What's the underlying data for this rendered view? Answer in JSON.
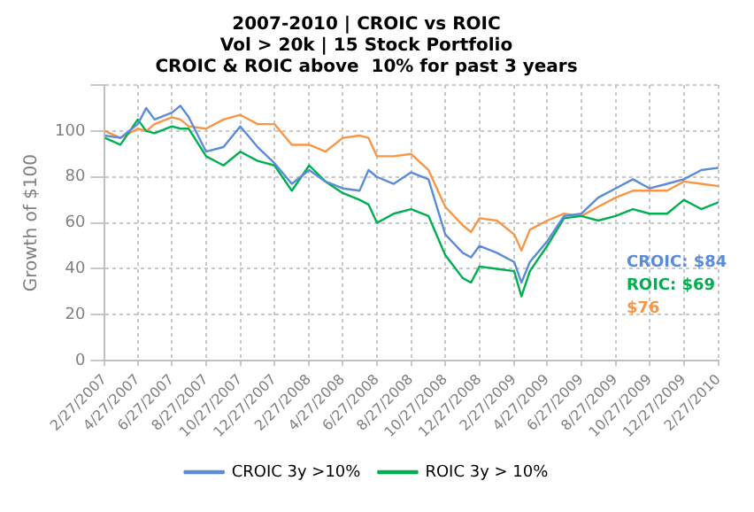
{
  "chart_data": {
    "type": "line",
    "title": "2007-2010 | CROIC vs ROIC",
    "subtitle": "Vol > 20k | 15 Stock Portfolio\nCROIC & ROIC above  10% for past 3 years",
    "ylabel": "Growth of $100",
    "x": [
      "2007-02-27",
      "2007-03-27",
      "2007-04-27",
      "2007-05-12",
      "2007-05-27",
      "2007-06-27",
      "2007-07-12",
      "2007-07-27",
      "2007-08-27",
      "2007-09-27",
      "2007-10-27",
      "2007-11-27",
      "2007-12-27",
      "2008-01-27",
      "2008-02-27",
      "2008-03-27",
      "2008-04-27",
      "2008-05-27",
      "2008-06-12",
      "2008-06-27",
      "2008-07-27",
      "2008-08-27",
      "2008-09-27",
      "2008-10-27",
      "2008-11-27",
      "2008-12-12",
      "2008-12-27",
      "2009-01-27",
      "2009-02-27",
      "2009-03-12",
      "2009-03-27",
      "2009-04-27",
      "2009-05-27",
      "2009-06-27",
      "2009-07-27",
      "2009-08-27",
      "2009-09-27",
      "2009-10-27",
      "2009-11-27",
      "2009-12-27",
      "2010-01-27",
      "2010-02-27"
    ],
    "series": [
      {
        "name": "CROIC 3y >10%",
        "color": "#5b8bd9",
        "values": [
          98,
          97,
          103,
          110,
          105,
          108,
          111,
          106,
          91,
          93,
          102,
          93,
          86,
          77,
          83,
          78,
          75,
          74,
          83,
          80,
          77,
          82,
          79,
          55,
          47,
          45,
          50,
          47,
          43,
          34,
          43,
          52,
          63,
          64,
          71,
          75,
          79,
          75,
          77,
          79,
          83,
          84
        ]
      },
      {
        "name": "ROIC 3y > 10%",
        "color": "#00b050",
        "values": [
          97,
          94,
          105,
          100,
          99,
          102,
          101,
          101,
          89,
          85,
          91,
          87,
          85,
          74,
          85,
          78,
          73,
          70,
          68,
          60,
          64,
          66,
          63,
          46,
          36,
          34,
          41,
          40,
          39,
          28,
          39,
          50,
          62,
          63,
          61,
          63,
          66,
          64,
          64,
          70,
          66,
          69
        ]
      },
      {
        "color": "#f79646",
        "values": [
          100,
          97,
          101,
          100,
          103,
          106,
          105,
          102,
          101,
          105,
          107,
          103,
          103,
          94,
          94,
          91,
          97,
          98,
          97,
          89,
          89,
          90,
          83,
          67,
          59,
          56,
          62,
          61,
          55,
          48,
          57,
          61,
          64,
          63,
          67,
          71,
          74,
          74,
          74,
          78,
          77,
          76
        ]
      }
    ],
    "annotations": [
      "CROIC: $84",
      "ROIC: $69",
      "$76"
    ],
    "xlim": [
      "2007-02-27",
      "2010-02-27"
    ],
    "xticks": [
      {
        "value": "2007-02-27",
        "label": "2/27/2007"
      },
      {
        "value": "2007-04-27",
        "label": "4/27/2007"
      },
      {
        "value": "2007-06-27",
        "label": "6/27/2007"
      },
      {
        "value": "2007-08-27",
        "label": "8/27/2007"
      },
      {
        "value": "2007-10-27",
        "label": "10/27/2007"
      },
      {
        "value": "2007-12-27",
        "label": "12/27/2007"
      },
      {
        "value": "2008-02-27",
        "label": "2/27/2008"
      },
      {
        "value": "2008-04-27",
        "label": "4/27/2008"
      },
      {
        "value": "2008-06-27",
        "label": "6/27/2008"
      },
      {
        "value": "2008-08-27",
        "label": "8/27/2008"
      },
      {
        "value": "2008-10-27",
        "label": "10/27/2008"
      },
      {
        "value": "2008-12-27",
        "label": "12/27/2008"
      },
      {
        "value": "2009-02-27",
        "label": "2/27/2009"
      },
      {
        "value": "2009-04-27",
        "label": "4/27/2009"
      },
      {
        "value": "2009-06-27",
        "label": "6/27/2009"
      },
      {
        "value": "2009-08-27",
        "label": "8/27/2009"
      },
      {
        "value": "2009-10-27",
        "label": "10/27/2009"
      },
      {
        "value": "2009-12-27",
        "label": "12/27/2009"
      },
      {
        "value": "2010-02-27",
        "label": "2/27/2010"
      }
    ],
    "ylim": [
      0,
      120
    ],
    "yticks": [
      0,
      20,
      40,
      60,
      80,
      100,
      {
        "value": 120,
        "label": null
      }
    ],
    "grid": true,
    "legend": "bottom",
    "marker": "none",
    "line_style": "solid"
  }
}
